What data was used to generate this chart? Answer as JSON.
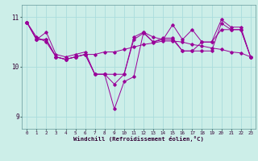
{
  "xlabel": "Windchill (Refroidissement éolien,°C)",
  "bg_color": "#cceee8",
  "line_color": "#990099",
  "grid_color": "#aadddd",
  "xlim": [
    -0.5,
    23.5
  ],
  "ylim": [
    8.75,
    11.25
  ],
  "yticks": [
    9,
    10,
    11
  ],
  "xticks": [
    0,
    1,
    2,
    3,
    4,
    5,
    6,
    7,
    8,
    9,
    10,
    11,
    12,
    13,
    14,
    15,
    16,
    17,
    18,
    19,
    20,
    21,
    22,
    23
  ],
  "series": [
    [
      10.9,
      10.6,
      10.5,
      10.2,
      10.15,
      10.2,
      10.25,
      10.25,
      10.3,
      10.3,
      10.35,
      10.4,
      10.45,
      10.48,
      10.52,
      10.52,
      10.5,
      10.45,
      10.42,
      10.38,
      10.35,
      10.3,
      10.28,
      10.2
    ],
    [
      10.9,
      10.55,
      10.7,
      10.25,
      10.2,
      10.25,
      10.3,
      9.85,
      9.85,
      9.15,
      9.7,
      9.8,
      10.7,
      10.6,
      10.55,
      10.85,
      10.55,
      10.75,
      10.5,
      10.5,
      10.95,
      10.8,
      10.8,
      10.2
    ],
    [
      10.9,
      10.55,
      10.55,
      10.2,
      10.15,
      10.2,
      10.25,
      9.85,
      9.85,
      9.85,
      9.85,
      10.6,
      10.7,
      10.5,
      10.55,
      10.55,
      10.32,
      10.32,
      10.5,
      10.5,
      10.75,
      10.75,
      10.75,
      10.2
    ],
    [
      10.9,
      10.55,
      10.55,
      10.2,
      10.15,
      10.2,
      10.25,
      9.85,
      9.85,
      9.65,
      9.85,
      10.55,
      10.68,
      10.5,
      10.58,
      10.58,
      10.32,
      10.32,
      10.32,
      10.32,
      10.88,
      10.75,
      10.75,
      10.2
    ]
  ]
}
